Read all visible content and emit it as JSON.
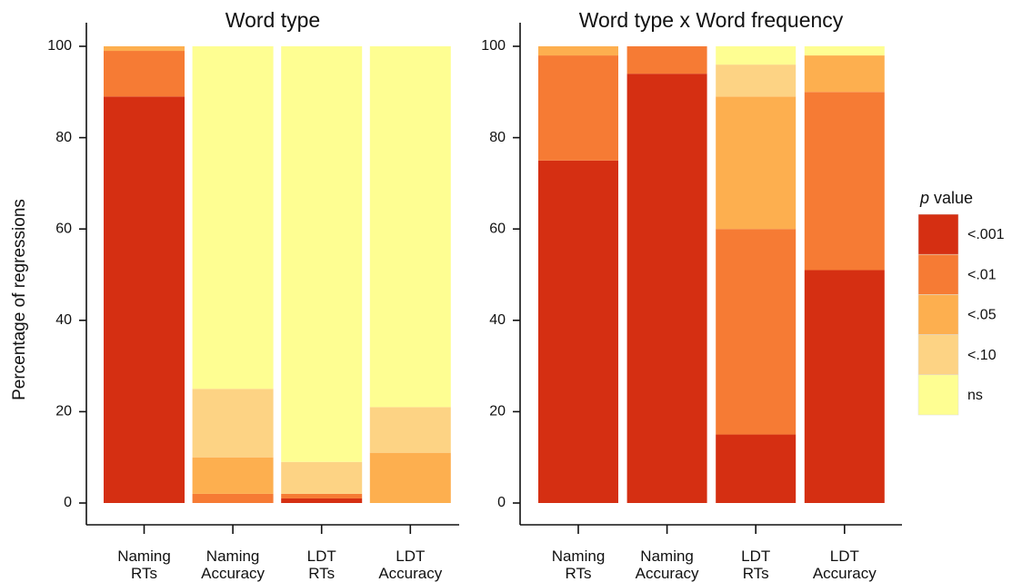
{
  "chart_data": [
    {
      "type": "stacked_bar",
      "title": "Word type",
      "ylabel": "Percentage of regressions",
      "categories": [
        "Naming RTs",
        "Naming Accuracy",
        "LDT RTs",
        "LDT Accuracy"
      ],
      "ylim": [
        0,
        100
      ],
      "yticks": [
        0,
        20,
        40,
        60,
        80,
        100
      ],
      "series": [
        {
          "name": "<.001",
          "color": "#d52f12",
          "values": [
            89,
            0,
            1,
            0
          ]
        },
        {
          "name": "<.01",
          "color": "#f67b34",
          "values": [
            10,
            2,
            1,
            0
          ]
        },
        {
          "name": "<.05",
          "color": "#fdaf4f",
          "values": [
            1,
            8,
            0,
            11
          ]
        },
        {
          "name": "<.10",
          "color": "#fdd384",
          "values": [
            0,
            15,
            7,
            10
          ]
        },
        {
          "name": "ns",
          "color": "#fefe92",
          "values": [
            0,
            75,
            91,
            79
          ]
        }
      ]
    },
    {
      "type": "stacked_bar",
      "title": "Word type x Word frequency",
      "legend_title": "p value",
      "categories": [
        "Naming RTs",
        "Naming Accuracy",
        "LDT RTs",
        "LDT Accuracy"
      ],
      "ylim": [
        0,
        100
      ],
      "yticks": [
        0,
        20,
        40,
        60,
        80,
        100
      ],
      "legend": "right",
      "series": [
        {
          "name": "<.001",
          "color": "#d52f12",
          "values": [
            75,
            94,
            15,
            51
          ]
        },
        {
          "name": "<.01",
          "color": "#f67b34",
          "values": [
            23,
            6,
            45,
            39
          ]
        },
        {
          "name": "<.05",
          "color": "#fdaf4f",
          "values": [
            2,
            0,
            29,
            8
          ]
        },
        {
          "name": "<.10",
          "color": "#fdd384",
          "values": [
            0,
            0,
            7,
            0
          ]
        },
        {
          "name": "ns",
          "color": "#fefe92",
          "values": [
            0,
            0,
            4,
            2
          ]
        }
      ]
    }
  ]
}
